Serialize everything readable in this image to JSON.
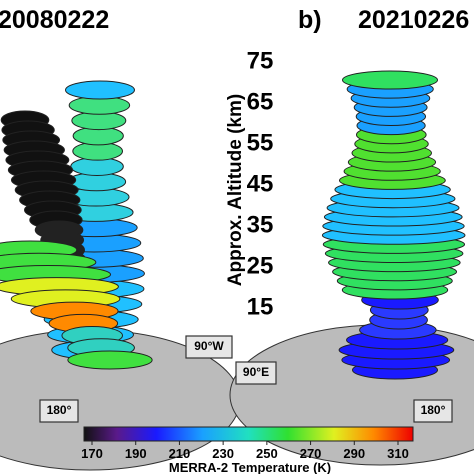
{
  "panels": [
    {
      "date": "20080222"
    },
    {
      "label": "b)",
      "date": "20210226"
    }
  ],
  "altitude_axis": {
    "label": "Approx. Altitude (km)",
    "ticks": [
      75,
      65,
      55,
      45,
      35,
      25,
      15
    ]
  },
  "map_labels": [
    "90°W",
    "90°E",
    "180°",
    "180°"
  ],
  "colorbar": {
    "label": "MERRA-2 Temperature (K)",
    "range": [
      170,
      310
    ],
    "ticks": [
      170,
      190,
      210,
      230,
      250,
      270,
      290,
      310
    ]
  }
}
